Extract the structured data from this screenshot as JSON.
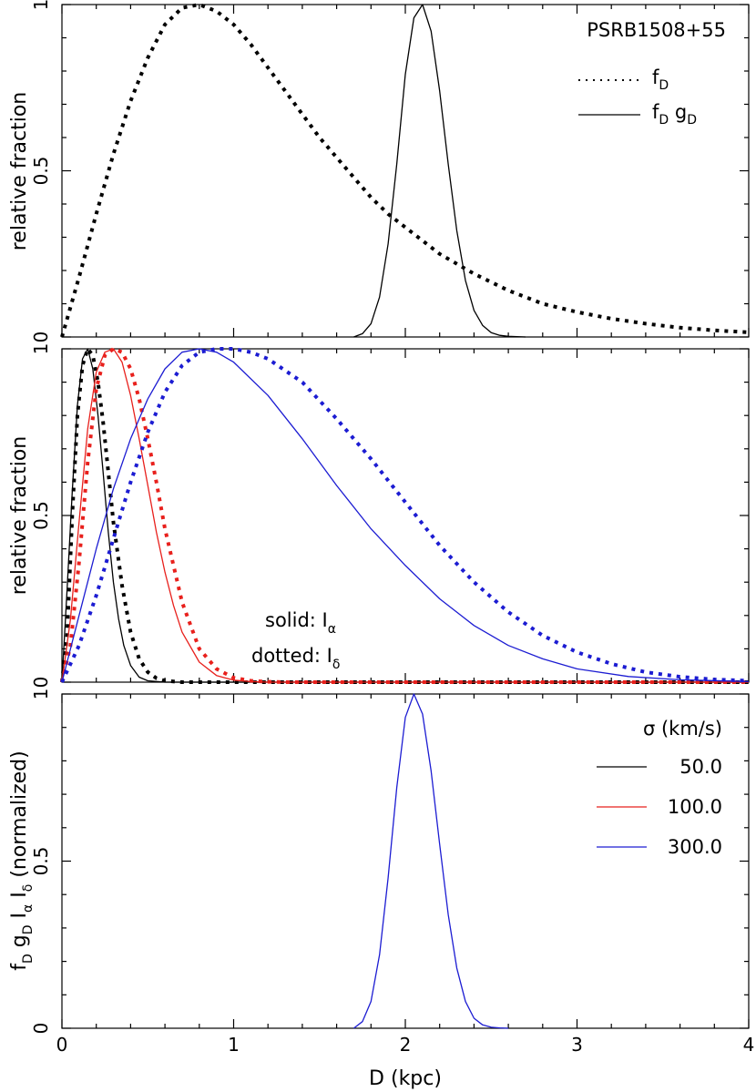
{
  "colors": {
    "black": "#000000",
    "red": "#e8201c",
    "blue": "#1c1cd2"
  },
  "chart_data": [
    {
      "type": "line",
      "title": "",
      "xlabel": "",
      "ylabel": "relative fraction",
      "xlim": [
        0,
        4
      ],
      "ylim": [
        0,
        1
      ],
      "xticks": [
        0,
        1,
        2,
        3,
        4
      ],
      "yticks": [
        {
          "v": 0,
          "t": "0"
        },
        {
          "v": 0.5,
          "t": "0.5"
        },
        {
          "v": 1,
          "t": "1"
        }
      ],
      "annotation": "PSRB1508+55",
      "legend": [
        {
          "main": "f",
          "sub": "D",
          "style": "dotted"
        },
        {
          "main": "f",
          "sub": "D",
          "main2": " g",
          "sub2": "D",
          "style": "solid"
        }
      ],
      "series": [
        {
          "key": "fD",
          "style": "dotted",
          "color": "#000000",
          "x": [
            0,
            0.1,
            0.2,
            0.3,
            0.4,
            0.5,
            0.6,
            0.7,
            0.8,
            0.9,
            1.0,
            1.1,
            1.2,
            1.3,
            1.4,
            1.5,
            1.6,
            1.7,
            1.8,
            1.9,
            2.0,
            2.2,
            2.4,
            2.6,
            2.8,
            3.0,
            3.2,
            3.4,
            3.6,
            3.8,
            4.0
          ],
          "y": [
            0,
            0.18,
            0.37,
            0.55,
            0.71,
            0.84,
            0.94,
            0.99,
            1.0,
            0.98,
            0.94,
            0.88,
            0.81,
            0.74,
            0.67,
            0.6,
            0.54,
            0.48,
            0.42,
            0.37,
            0.33,
            0.25,
            0.19,
            0.14,
            0.1,
            0.075,
            0.055,
            0.04,
            0.028,
            0.02,
            0.014
          ]
        },
        {
          "key": "fDgD",
          "style": "solid",
          "color": "#000000",
          "x": [
            1.7,
            1.75,
            1.8,
            1.85,
            1.9,
            1.95,
            2.0,
            2.05,
            2.1,
            2.15,
            2.2,
            2.25,
            2.3,
            2.35,
            2.4,
            2.45,
            2.5,
            2.55,
            2.6,
            2.7
          ],
          "y": [
            0,
            0.01,
            0.04,
            0.12,
            0.28,
            0.52,
            0.79,
            0.96,
            1.0,
            0.92,
            0.74,
            0.52,
            0.32,
            0.17,
            0.08,
            0.035,
            0.013,
            0.005,
            0.002,
            0
          ]
        }
      ]
    },
    {
      "type": "line",
      "title": "",
      "xlabel": "",
      "ylabel": "relative fraction",
      "xlim": [
        0,
        4
      ],
      "ylim": [
        0,
        1
      ],
      "xticks": [
        0,
        1,
        2,
        3,
        4
      ],
      "yticks": [
        {
          "v": 0,
          "t": "0"
        },
        {
          "v": 0.5,
          "t": "0.5"
        },
        {
          "v": 1,
          "t": "1"
        }
      ],
      "annotations": [
        {
          "main": "solid: I",
          "sub": "α"
        },
        {
          "main": "dotted: I",
          "sub": "δ"
        }
      ],
      "series": [
        {
          "key": "Ia_50",
          "style": "solid",
          "color": "#000000",
          "x": [
            0,
            0.03,
            0.06,
            0.09,
            0.12,
            0.15,
            0.18,
            0.21,
            0.24,
            0.27,
            0.3,
            0.33,
            0.36,
            0.4,
            0.45,
            0.5,
            0.6,
            0.8,
            1.0,
            4.0
          ],
          "y": [
            0,
            0.28,
            0.57,
            0.83,
            0.97,
            1.0,
            0.94,
            0.8,
            0.63,
            0.45,
            0.3,
            0.19,
            0.11,
            0.05,
            0.015,
            0.004,
            0,
            0,
            0,
            0
          ]
        },
        {
          "key": "Id_50",
          "style": "dotted",
          "color": "#000000",
          "x": [
            0,
            0.03,
            0.06,
            0.09,
            0.12,
            0.15,
            0.18,
            0.21,
            0.24,
            0.27,
            0.3,
            0.35,
            0.4,
            0.45,
            0.5,
            0.55,
            0.6,
            0.7,
            0.8,
            1.0,
            4.0
          ],
          "y": [
            0,
            0.14,
            0.5,
            0.8,
            0.95,
            1.0,
            0.98,
            0.9,
            0.78,
            0.63,
            0.48,
            0.29,
            0.15,
            0.07,
            0.03,
            0.012,
            0.004,
            0,
            0,
            0,
            0
          ]
        },
        {
          "key": "Ia_100",
          "style": "solid",
          "color": "#e8201c",
          "x": [
            0,
            0.05,
            0.1,
            0.15,
            0.2,
            0.25,
            0.3,
            0.35,
            0.4,
            0.45,
            0.5,
            0.55,
            0.6,
            0.65,
            0.7,
            0.8,
            0.9,
            1.0,
            1.1,
            1.2,
            4.0
          ],
          "y": [
            0,
            0.19,
            0.48,
            0.76,
            0.93,
            0.99,
            1.0,
            0.96,
            0.86,
            0.73,
            0.59,
            0.45,
            0.33,
            0.23,
            0.15,
            0.06,
            0.02,
            0.006,
            0.002,
            0,
            0
          ]
        },
        {
          "key": "Id_100",
          "style": "dotted",
          "color": "#e8201c",
          "x": [
            0,
            0.05,
            0.1,
            0.15,
            0.2,
            0.25,
            0.3,
            0.35,
            0.4,
            0.45,
            0.5,
            0.55,
            0.6,
            0.7,
            0.8,
            0.9,
            1.0,
            1.1,
            1.2,
            1.3,
            4.0
          ],
          "y": [
            0,
            0.11,
            0.36,
            0.66,
            0.88,
            0.98,
            1.0,
            0.99,
            0.94,
            0.85,
            0.73,
            0.6,
            0.46,
            0.24,
            0.1,
            0.04,
            0.013,
            0.004,
            0.001,
            0,
            0
          ]
        },
        {
          "key": "Ia_300",
          "style": "solid",
          "color": "#1c1cd2",
          "x": [
            0,
            0.1,
            0.2,
            0.3,
            0.4,
            0.5,
            0.6,
            0.7,
            0.8,
            0.9,
            1.0,
            1.2,
            1.4,
            1.6,
            1.8,
            2.0,
            2.2,
            2.4,
            2.6,
            2.8,
            3.0,
            3.3,
            3.6,
            4.0
          ],
          "y": [
            0,
            0.2,
            0.4,
            0.58,
            0.73,
            0.85,
            0.94,
            0.99,
            1.0,
            0.99,
            0.96,
            0.86,
            0.73,
            0.59,
            0.46,
            0.35,
            0.25,
            0.17,
            0.11,
            0.07,
            0.04,
            0.017,
            0.007,
            0.002
          ]
        },
        {
          "key": "Id_300",
          "style": "dotted",
          "color": "#1c1cd2",
          "x": [
            0,
            0.1,
            0.2,
            0.3,
            0.4,
            0.5,
            0.6,
            0.7,
            0.8,
            0.9,
            1.0,
            1.1,
            1.2,
            1.4,
            1.6,
            1.8,
            2.0,
            2.2,
            2.4,
            2.6,
            2.8,
            3.0,
            3.2,
            3.4,
            3.6,
            3.8,
            4.0
          ],
          "y": [
            0,
            0.11,
            0.26,
            0.43,
            0.6,
            0.75,
            0.87,
            0.95,
            0.99,
            1.0,
            1.0,
            0.99,
            0.97,
            0.9,
            0.79,
            0.67,
            0.54,
            0.41,
            0.3,
            0.21,
            0.14,
            0.09,
            0.055,
            0.03,
            0.016,
            0.008,
            0.004
          ]
        }
      ]
    },
    {
      "type": "line",
      "title": "",
      "xlabel": "D (kpc)",
      "ylabel": "f_D g_D I_α I_δ (normalized)",
      "xlim": [
        0,
        4
      ],
      "ylim": [
        0,
        1
      ],
      "xticks": [
        0,
        1,
        2,
        3,
        4
      ],
      "yticks": [
        {
          "v": 0,
          "t": "0"
        },
        {
          "v": 0.5,
          "t": "0.5"
        },
        {
          "v": 1,
          "t": "1"
        }
      ],
      "legend_title": "σ (km/s)",
      "legend": [
        {
          "label": "50.0",
          "color": "#000000"
        },
        {
          "label": "100.0",
          "color": "#e8201c"
        },
        {
          "label": "300.0",
          "color": "#1c1cd2"
        }
      ],
      "series": [
        {
          "key": "product_300",
          "style": "solid",
          "color": "#1c1cd2",
          "x": [
            1.7,
            1.75,
            1.8,
            1.85,
            1.9,
            1.95,
            2.0,
            2.05,
            2.1,
            2.15,
            2.2,
            2.25,
            2.3,
            2.35,
            2.4,
            2.45,
            2.5,
            2.55,
            2.6
          ],
          "y": [
            0,
            0.02,
            0.08,
            0.22,
            0.45,
            0.72,
            0.93,
            1.0,
            0.94,
            0.77,
            0.55,
            0.34,
            0.18,
            0.08,
            0.03,
            0.01,
            0.003,
            0.001,
            0
          ]
        }
      ]
    }
  ]
}
